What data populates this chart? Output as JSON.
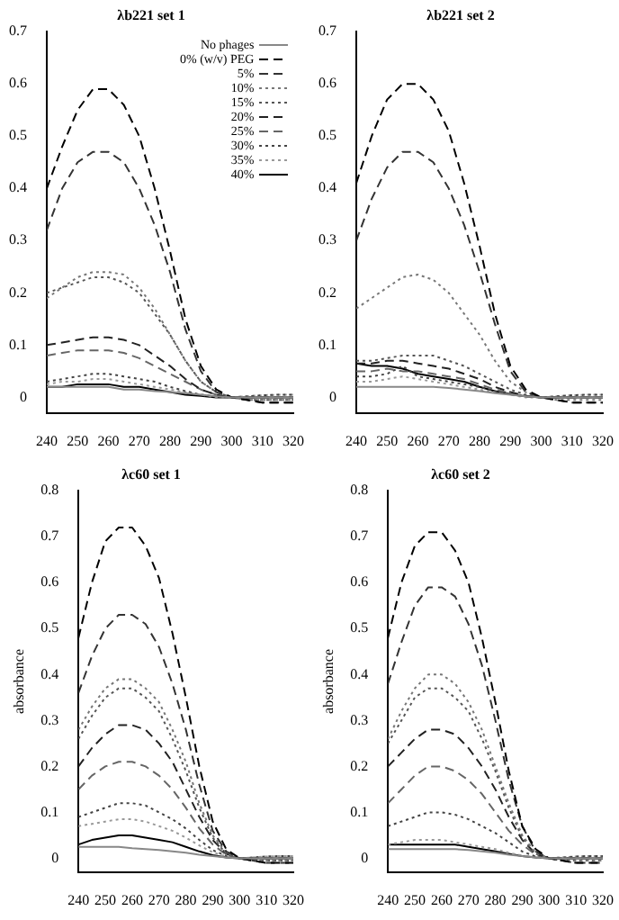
{
  "chart_data": [
    {
      "type": "line",
      "title": "λb221 set 1",
      "x": [
        240,
        245,
        250,
        255,
        260,
        265,
        270,
        275,
        280,
        285,
        290,
        295,
        300,
        305,
        310,
        315,
        320
      ],
      "xlim": [
        240,
        320
      ],
      "xticks": [
        240,
        250,
        260,
        270,
        280,
        290,
        300,
        310,
        320
      ],
      "ylim": [
        -0.03,
        0.7
      ],
      "yticks": [
        0,
        0.1,
        0.2,
        0.3,
        0.4,
        0.5,
        0.6,
        0.7
      ],
      "grid": false,
      "legend": "top right",
      "marker": "none",
      "series": [
        {
          "name": "No phages",
          "color": "#888888",
          "line_style": "solid",
          "values": [
            0.02,
            0.02,
            0.02,
            0.02,
            0.02,
            0.015,
            0.015,
            0.012,
            0.01,
            0.008,
            0.005,
            0.002,
            0,
            0,
            0,
            0,
            0
          ]
        },
        {
          "name": "0% (w/v) PEG",
          "color": "#000000",
          "line_style": "dashed",
          "values": [
            0.4,
            0.48,
            0.55,
            0.59,
            0.59,
            0.56,
            0.5,
            0.4,
            0.28,
            0.15,
            0.06,
            0.015,
            0,
            -0.005,
            -0.01,
            -0.01,
            -0.01
          ]
        },
        {
          "name": "5%",
          "color": "#333333",
          "line_style": "dashed",
          "values": [
            0.32,
            0.4,
            0.45,
            0.47,
            0.47,
            0.45,
            0.4,
            0.33,
            0.24,
            0.13,
            0.05,
            0.01,
            0,
            -0.005,
            -0.01,
            -0.01,
            -0.01
          ]
        },
        {
          "name": "10%",
          "color": "#777777",
          "line_style": "dotted",
          "values": [
            0.19,
            0.21,
            0.23,
            0.24,
            0.24,
            0.235,
            0.21,
            0.17,
            0.12,
            0.07,
            0.03,
            0.01,
            0,
            -0.005,
            -0.005,
            -0.005,
            -0.005
          ]
        },
        {
          "name": "15%",
          "color": "#555555",
          "line_style": "dotted",
          "values": [
            0.2,
            0.21,
            0.22,
            0.23,
            0.23,
            0.22,
            0.2,
            0.16,
            0.12,
            0.07,
            0.03,
            0.01,
            0,
            -0.005,
            -0.005,
            -0.005,
            -0.005
          ]
        },
        {
          "name": "20%",
          "color": "#222222",
          "line_style": "dashed",
          "values": [
            0.1,
            0.105,
            0.11,
            0.115,
            0.115,
            0.11,
            0.1,
            0.08,
            0.06,
            0.035,
            0.015,
            0.005,
            0,
            0,
            0,
            0,
            0
          ]
        },
        {
          "name": "25%",
          "color": "#666666",
          "line_style": "dashed",
          "values": [
            0.08,
            0.085,
            0.09,
            0.09,
            0.09,
            0.085,
            0.075,
            0.06,
            0.045,
            0.03,
            0.015,
            0.005,
            0,
            0,
            0,
            0,
            0
          ]
        },
        {
          "name": "30%",
          "color": "#444444",
          "line_style": "dotted",
          "values": [
            0.03,
            0.035,
            0.04,
            0.045,
            0.045,
            0.04,
            0.035,
            0.03,
            0.02,
            0.012,
            0.005,
            0.002,
            0,
            0.002,
            0.004,
            0.005,
            0.005
          ]
        },
        {
          "name": "35%",
          "color": "#999999",
          "line_style": "dotted",
          "values": [
            0.025,
            0.03,
            0.03,
            0.035,
            0.035,
            0.03,
            0.025,
            0.02,
            0.015,
            0.01,
            0.005,
            0,
            0,
            0.002,
            0.004,
            0.005,
            0.005
          ]
        },
        {
          "name": "40%",
          "color": "#000000",
          "line_style": "solid",
          "values": [
            0.02,
            0.02,
            0.025,
            0.025,
            0.025,
            0.02,
            0.02,
            0.015,
            0.01,
            0.005,
            0.003,
            0,
            0,
            0,
            0,
            0,
            0
          ]
        }
      ]
    },
    {
      "type": "line",
      "title": "λb221 set 2",
      "x": [
        240,
        245,
        250,
        255,
        260,
        265,
        270,
        275,
        280,
        285,
        290,
        295,
        300,
        305,
        310,
        315,
        320
      ],
      "xlim": [
        240,
        320
      ],
      "xticks": [
        240,
        250,
        260,
        270,
        280,
        290,
        300,
        310,
        320
      ],
      "ylim": [
        -0.03,
        0.7
      ],
      "yticks": [
        0,
        0.1,
        0.2,
        0.3,
        0.4,
        0.5,
        0.6,
        0.7
      ],
      "grid": false,
      "marker": "none",
      "series": [
        {
          "color": "#888888",
          "line_style": "solid",
          "values": [
            0.02,
            0.02,
            0.02,
            0.02,
            0.02,
            0.02,
            0.018,
            0.015,
            0.012,
            0.008,
            0.005,
            0.002,
            0,
            0,
            0,
            0,
            0
          ]
        },
        {
          "color": "#000000",
          "line_style": "dashed",
          "values": [
            0.41,
            0.5,
            0.57,
            0.6,
            0.6,
            0.57,
            0.51,
            0.41,
            0.29,
            0.16,
            0.06,
            0.015,
            0,
            -0.005,
            -0.01,
            -0.01,
            -0.01
          ]
        },
        {
          "color": "#333333",
          "line_style": "dashed",
          "values": [
            0.3,
            0.38,
            0.44,
            0.47,
            0.47,
            0.45,
            0.4,
            0.33,
            0.24,
            0.14,
            0.05,
            0.01,
            0,
            -0.005,
            -0.01,
            -0.01,
            -0.01
          ]
        },
        {
          "color": "#777777",
          "line_style": "dotted",
          "values": [
            0.17,
            0.19,
            0.21,
            0.23,
            0.235,
            0.225,
            0.2,
            0.16,
            0.12,
            0.07,
            0.03,
            0.01,
            0,
            -0.005,
            -0.005,
            -0.005,
            -0.005
          ]
        },
        {
          "color": "#555555",
          "line_style": "dotted",
          "values": [
            0.07,
            0.07,
            0.075,
            0.08,
            0.08,
            0.08,
            0.07,
            0.06,
            0.045,
            0.03,
            0.015,
            0.005,
            0,
            0,
            0,
            0,
            0
          ]
        },
        {
          "color": "#222222",
          "line_style": "dashed",
          "values": [
            0.065,
            0.065,
            0.07,
            0.07,
            0.065,
            0.06,
            0.055,
            0.045,
            0.035,
            0.02,
            0.01,
            0.003,
            0,
            0,
            0,
            0,
            0
          ]
        },
        {
          "color": "#666666",
          "line_style": "dashed",
          "values": [
            0.05,
            0.05,
            0.055,
            0.05,
            0.05,
            0.045,
            0.04,
            0.035,
            0.025,
            0.015,
            0.008,
            0.002,
            0,
            0,
            0,
            0,
            0
          ]
        },
        {
          "color": "#444444",
          "line_style": "dotted",
          "values": [
            0.04,
            0.04,
            0.045,
            0.06,
            0.04,
            0.035,
            0.03,
            0.025,
            0.02,
            0.012,
            0.006,
            0.002,
            0,
            0.002,
            0.004,
            0.005,
            0.005
          ]
        },
        {
          "color": "#999999",
          "line_style": "dotted",
          "values": [
            0.03,
            0.03,
            0.035,
            0.04,
            0.035,
            0.03,
            0.025,
            0.02,
            0.015,
            0.01,
            0.005,
            0,
            0,
            0.002,
            0.004,
            0.005,
            0.005
          ]
        },
        {
          "color": "#000000",
          "line_style": "solid",
          "values": [
            0.065,
            0.06,
            0.06,
            0.055,
            0.045,
            0.04,
            0.035,
            0.03,
            0.02,
            0.012,
            0.006,
            0.002,
            0,
            0,
            0,
            0,
            0
          ]
        }
      ]
    },
    {
      "type": "line",
      "title": "λc60 set 1",
      "ylabel": "absorbance",
      "x": [
        240,
        245,
        250,
        255,
        260,
        265,
        270,
        275,
        280,
        285,
        290,
        295,
        300,
        305,
        310,
        315,
        320
      ],
      "xlim": [
        240,
        320
      ],
      "xticks": [
        240,
        250,
        260,
        270,
        280,
        290,
        300,
        310,
        320
      ],
      "ylim": [
        -0.03,
        0.8
      ],
      "yticks": [
        0,
        0.1,
        0.2,
        0.3,
        0.4,
        0.5,
        0.6,
        0.7,
        0.8
      ],
      "grid": false,
      "marker": "none",
      "series": [
        {
          "color": "#888888",
          "line_style": "solid",
          "values": [
            0.025,
            0.025,
            0.025,
            0.025,
            0.022,
            0.02,
            0.018,
            0.015,
            0.012,
            0.008,
            0.005,
            0.002,
            0,
            0,
            0,
            0,
            0
          ]
        },
        {
          "color": "#000000",
          "line_style": "dashed",
          "values": [
            0.48,
            0.6,
            0.69,
            0.72,
            0.72,
            0.68,
            0.61,
            0.49,
            0.35,
            0.2,
            0.08,
            0.02,
            0,
            -0.005,
            -0.01,
            -0.01,
            -0.01
          ]
        },
        {
          "color": "#333333",
          "line_style": "dashed",
          "values": [
            0.36,
            0.44,
            0.5,
            0.53,
            0.53,
            0.51,
            0.46,
            0.38,
            0.28,
            0.16,
            0.06,
            0.015,
            0,
            -0.005,
            -0.01,
            -0.01,
            -0.01
          ]
        },
        {
          "color": "#777777",
          "line_style": "dotted",
          "values": [
            0.28,
            0.33,
            0.37,
            0.39,
            0.39,
            0.37,
            0.34,
            0.28,
            0.21,
            0.12,
            0.05,
            0.012,
            0,
            -0.005,
            -0.005,
            -0.005,
            -0.005
          ]
        },
        {
          "color": "#555555",
          "line_style": "dotted",
          "values": [
            0.26,
            0.31,
            0.35,
            0.37,
            0.37,
            0.35,
            0.32,
            0.26,
            0.19,
            0.11,
            0.045,
            0.01,
            0,
            -0.005,
            -0.005,
            -0.005,
            -0.005
          ]
        },
        {
          "color": "#222222",
          "line_style": "dashed",
          "values": [
            0.2,
            0.24,
            0.27,
            0.29,
            0.29,
            0.28,
            0.25,
            0.21,
            0.15,
            0.09,
            0.04,
            0.01,
            0,
            0,
            0,
            0,
            0
          ]
        },
        {
          "color": "#666666",
          "line_style": "dashed",
          "values": [
            0.15,
            0.18,
            0.2,
            0.21,
            0.21,
            0.2,
            0.18,
            0.15,
            0.11,
            0.065,
            0.03,
            0.008,
            0,
            0,
            0,
            0,
            0
          ]
        },
        {
          "color": "#444444",
          "line_style": "dotted",
          "values": [
            0.09,
            0.1,
            0.11,
            0.12,
            0.12,
            0.115,
            0.1,
            0.085,
            0.065,
            0.04,
            0.018,
            0.005,
            0,
            0.002,
            0.004,
            0.005,
            0.005
          ]
        },
        {
          "color": "#999999",
          "line_style": "dotted",
          "values": [
            0.07,
            0.075,
            0.08,
            0.085,
            0.085,
            0.08,
            0.07,
            0.06,
            0.045,
            0.028,
            0.013,
            0.004,
            0,
            0.002,
            0.004,
            0.005,
            0.005
          ]
        },
        {
          "color": "#000000",
          "line_style": "solid",
          "values": [
            0.03,
            0.04,
            0.045,
            0.05,
            0.05,
            0.045,
            0.04,
            0.035,
            0.025,
            0.015,
            0.007,
            0.002,
            0,
            0,
            0,
            0,
            0
          ]
        }
      ]
    },
    {
      "type": "line",
      "title": "λc60 set 2",
      "ylabel": "absorbance",
      "x": [
        240,
        245,
        250,
        255,
        260,
        265,
        270,
        275,
        280,
        285,
        290,
        295,
        300,
        305,
        310,
        315,
        320
      ],
      "xlim": [
        240,
        320
      ],
      "xticks": [
        240,
        250,
        260,
        270,
        280,
        290,
        300,
        310,
        320
      ],
      "ylim": [
        -0.03,
        0.8
      ],
      "yticks": [
        0,
        0.1,
        0.2,
        0.3,
        0.4,
        0.5,
        0.6,
        0.7,
        0.8
      ],
      "grid": false,
      "marker": "none",
      "series": [
        {
          "color": "#888888",
          "line_style": "solid",
          "values": [
            0.02,
            0.02,
            0.02,
            0.02,
            0.02,
            0.02,
            0.018,
            0.015,
            0.012,
            0.008,
            0.005,
            0.002,
            0,
            0,
            0,
            0,
            0
          ]
        },
        {
          "color": "#000000",
          "line_style": "dashed",
          "values": [
            0.48,
            0.6,
            0.68,
            0.71,
            0.71,
            0.67,
            0.6,
            0.48,
            0.34,
            0.19,
            0.07,
            0.02,
            0,
            -0.005,
            -0.01,
            -0.01,
            -0.01
          ]
        },
        {
          "color": "#333333",
          "line_style": "dashed",
          "values": [
            0.38,
            0.47,
            0.55,
            0.59,
            0.59,
            0.57,
            0.51,
            0.42,
            0.3,
            0.17,
            0.07,
            0.015,
            0,
            -0.005,
            -0.01,
            -0.01,
            -0.01
          ]
        },
        {
          "color": "#777777",
          "line_style": "dotted",
          "values": [
            0.26,
            0.32,
            0.37,
            0.4,
            0.4,
            0.38,
            0.34,
            0.28,
            0.2,
            0.12,
            0.05,
            0.012,
            0,
            -0.005,
            -0.005,
            -0.005,
            -0.005
          ]
        },
        {
          "color": "#555555",
          "line_style": "dotted",
          "values": [
            0.25,
            0.3,
            0.35,
            0.37,
            0.37,
            0.35,
            0.32,
            0.26,
            0.19,
            0.11,
            0.045,
            0.01,
            0,
            -0.005,
            -0.005,
            -0.005,
            -0.005
          ]
        },
        {
          "color": "#222222",
          "line_style": "dashed",
          "values": [
            0.2,
            0.23,
            0.26,
            0.28,
            0.28,
            0.27,
            0.24,
            0.2,
            0.15,
            0.09,
            0.04,
            0.01,
            0,
            0,
            0,
            0,
            0
          ]
        },
        {
          "color": "#666666",
          "line_style": "dashed",
          "values": [
            0.12,
            0.15,
            0.18,
            0.2,
            0.2,
            0.19,
            0.17,
            0.14,
            0.1,
            0.06,
            0.03,
            0.008,
            0,
            0,
            0,
            0,
            0
          ]
        },
        {
          "color": "#444444",
          "line_style": "dotted",
          "values": [
            0.07,
            0.08,
            0.09,
            0.1,
            0.1,
            0.095,
            0.085,
            0.07,
            0.055,
            0.035,
            0.015,
            0.004,
            0,
            0.002,
            0.004,
            0.005,
            0.005
          ]
        },
        {
          "color": "#999999",
          "line_style": "dotted",
          "values": [
            0.03,
            0.035,
            0.04,
            0.04,
            0.04,
            0.035,
            0.03,
            0.025,
            0.02,
            0.012,
            0.006,
            0.002,
            0,
            0.002,
            0.004,
            0.005,
            0.005
          ]
        },
        {
          "color": "#000000",
          "line_style": "solid",
          "values": [
            0.03,
            0.03,
            0.03,
            0.03,
            0.03,
            0.03,
            0.025,
            0.02,
            0.015,
            0.01,
            0.005,
            0.002,
            0,
            0,
            0,
            0,
            0
          ]
        }
      ]
    }
  ]
}
